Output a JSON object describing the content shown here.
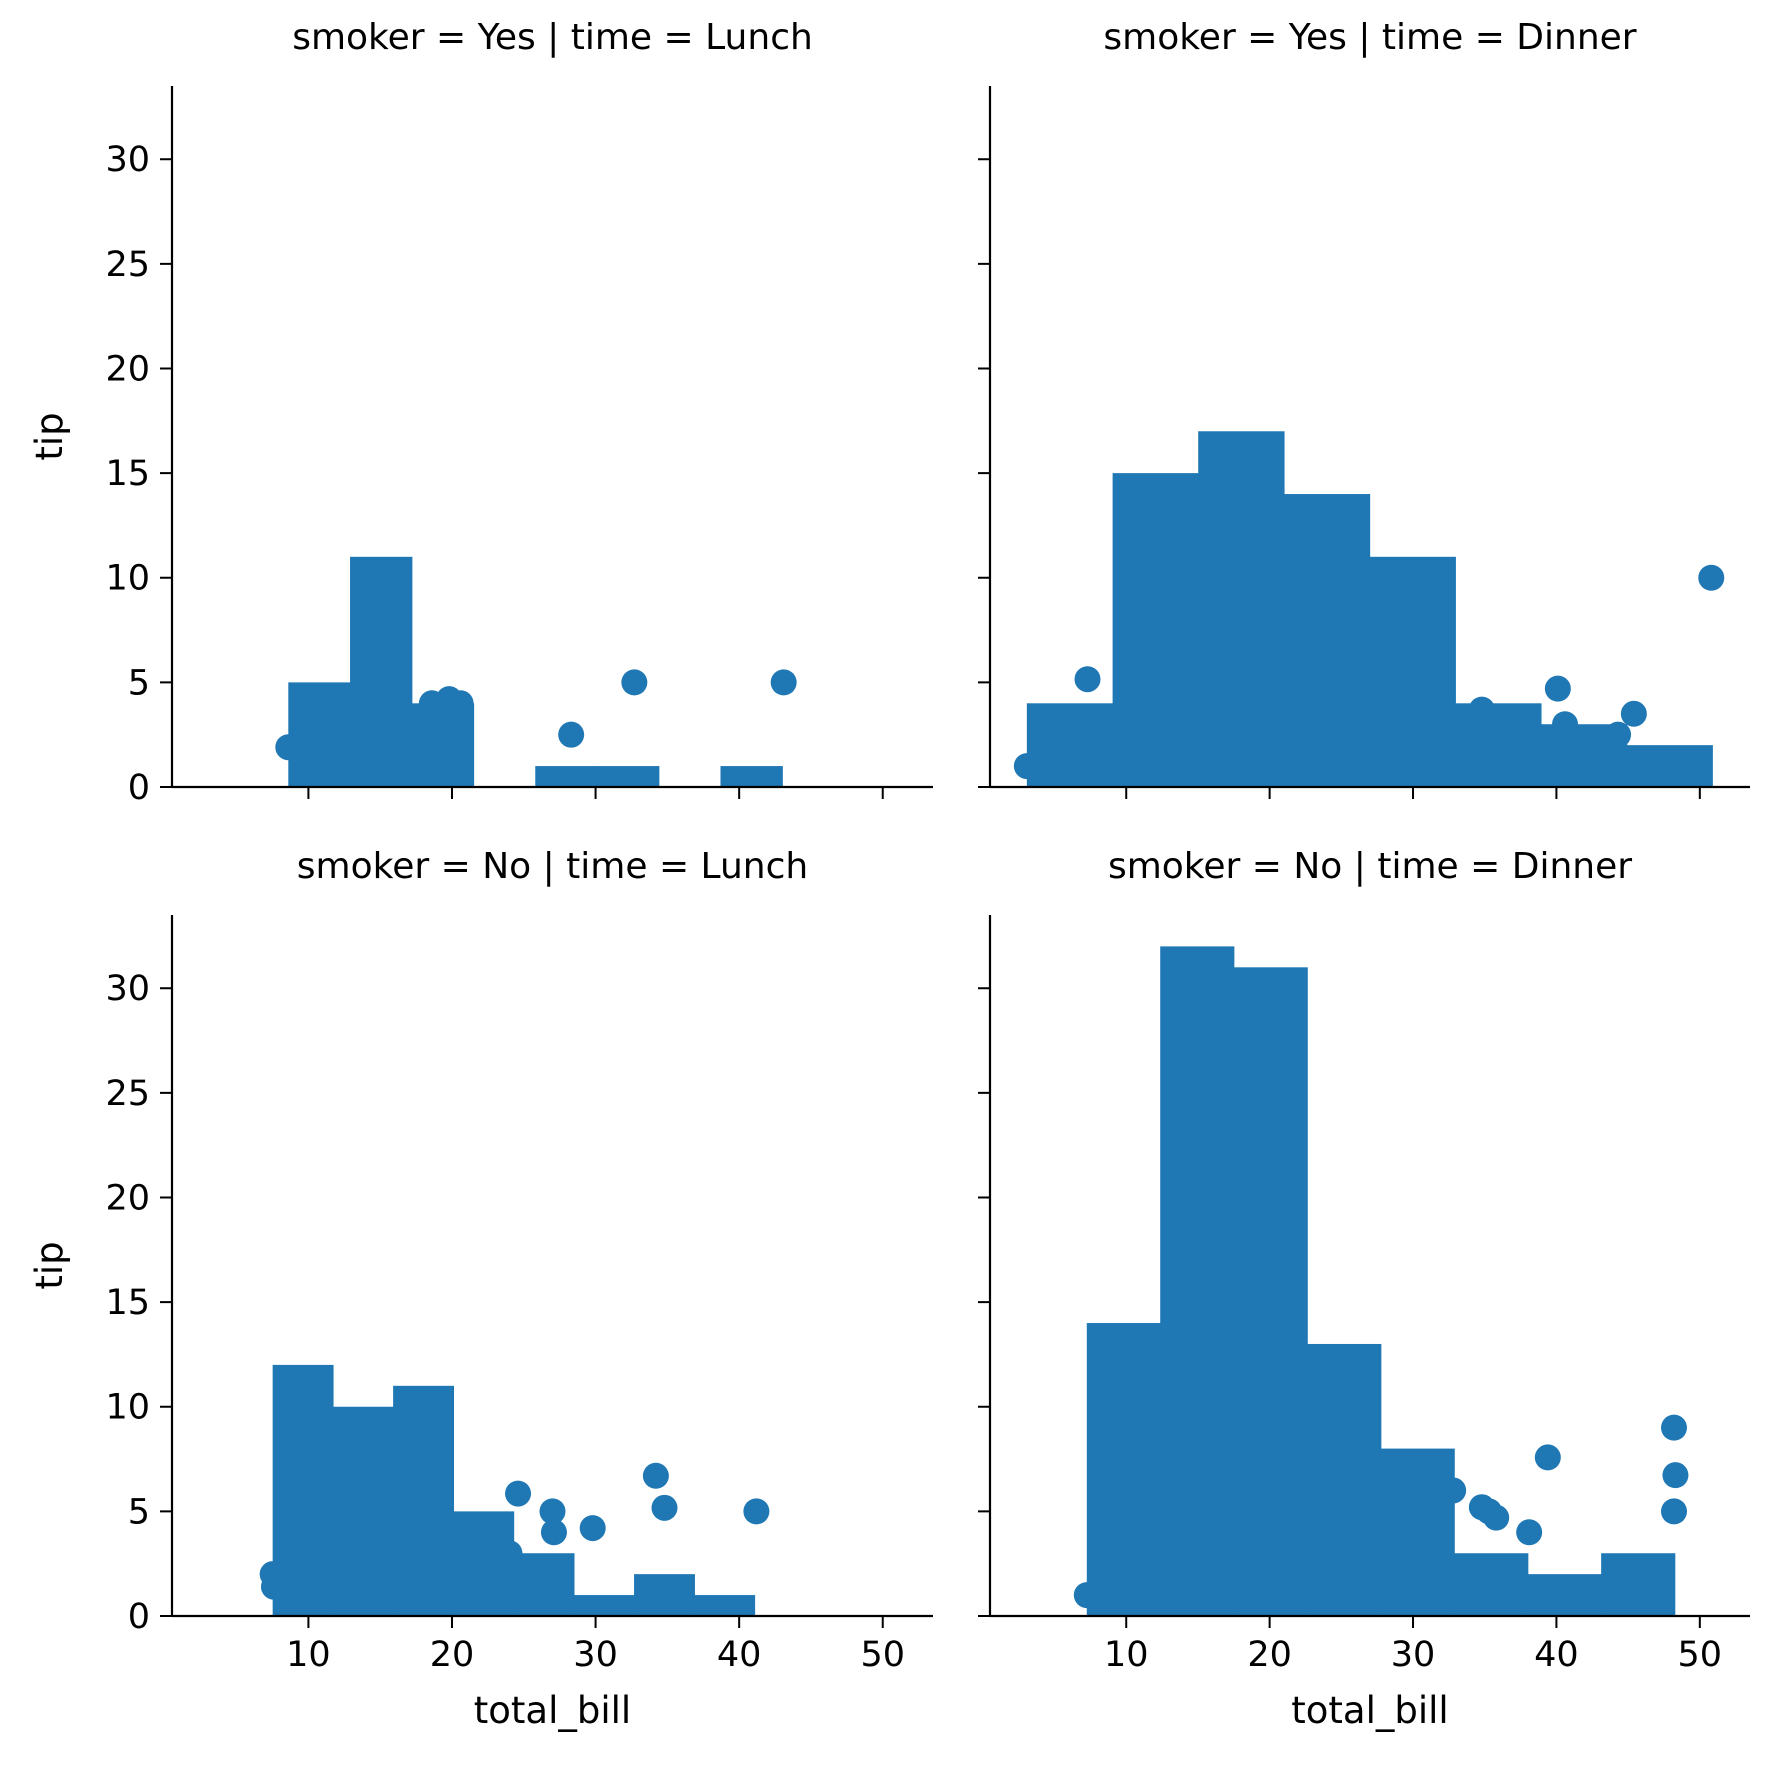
{
  "figure": {
    "x_label": "total_bill",
    "y_label": "tip",
    "mark_color": "#1f77b4",
    "x_range": [
      0.5,
      53.5
    ],
    "y_range": [
      0,
      33.5
    ],
    "x_ticks": [
      10,
      20,
      30,
      40,
      50
    ],
    "y_ticks": [
      0,
      5,
      10,
      15,
      20,
      25,
      30
    ],
    "grid": false,
    "legend": "none"
  },
  "chart_data": [
    {
      "type": "bar+scatter",
      "facet_title": "smoker = Yes | time = Lunch",
      "row": 0,
      "col": 0,
      "histogram": {
        "bin_edges": [
          8.6,
          12.9,
          17.2,
          21.5,
          25.8,
          30.1,
          34.4,
          38.7,
          43.0
        ],
        "counts": [
          5,
          11,
          4,
          0,
          1,
          1,
          0,
          1
        ]
      },
      "scatter": {
        "x": [
          8.6,
          10.1,
          11.5,
          12.9,
          14.2,
          15.5,
          16.6,
          17.5,
          18.6,
          19.8,
          20.6,
          28.3,
          32.7,
          43.1
        ],
        "y": [
          1.9,
          1.5,
          2.0,
          2.5,
          3.0,
          3.0,
          3.5,
          3.0,
          4.0,
          4.2,
          4.0,
          2.5,
          5.0,
          5.0
        ]
      }
    },
    {
      "type": "bar+scatter",
      "facet_title": "smoker = Yes | time = Dinner",
      "row": 0,
      "col": 1,
      "histogram": {
        "bin_edges": [
          3.07,
          9.05,
          15.02,
          21.0,
          26.97,
          32.95,
          38.92,
          44.9,
          50.87
        ],
        "counts": [
          4,
          15,
          17,
          14,
          11,
          4,
          3,
          2
        ]
      },
      "scatter": {
        "x": [
          3.07,
          7.3,
          10.0,
          34.8,
          37.9,
          40.1,
          40.6,
          44.3,
          45.4,
          50.8
        ],
        "y": [
          1.0,
          5.15,
          4.0,
          3.7,
          3.0,
          4.7,
          3.0,
          2.5,
          3.5,
          10.0
        ]
      }
    },
    {
      "type": "bar+scatter",
      "facet_title": "smoker = No | time = Lunch",
      "row": 1,
      "col": 0,
      "histogram": {
        "bin_edges": [
          7.51,
          11.71,
          15.9,
          20.1,
          24.29,
          28.49,
          32.68,
          36.88,
          41.07
        ],
        "counts": [
          12,
          10,
          11,
          5,
          3,
          1,
          2,
          1
        ]
      },
      "scatter": {
        "x": [
          7.51,
          7.6,
          24.0,
          24.6,
          27.0,
          27.1,
          29.8,
          34.2,
          34.8,
          41.2
        ],
        "y": [
          2.0,
          1.4,
          3.0,
          5.85,
          5.0,
          4.0,
          4.2,
          6.7,
          5.17,
          5.0
        ]
      }
    },
    {
      "type": "bar+scatter",
      "facet_title": "smoker = No | time = Dinner",
      "row": 1,
      "col": 1,
      "histogram": {
        "bin_edges": [
          7.25,
          12.37,
          17.5,
          22.62,
          27.75,
          32.87,
          38.0,
          43.12,
          48.25
        ],
        "counts": [
          14,
          32,
          31,
          13,
          8,
          3,
          2,
          3
        ]
      },
      "scatter": {
        "x": [
          7.25,
          32.8,
          34.8,
          35.3,
          35.8,
          38.1,
          39.4,
          48.2,
          48.3,
          48.2
        ],
        "y": [
          1.0,
          6.0,
          5.2,
          5.0,
          4.7,
          4.0,
          7.58,
          9.0,
          6.73,
          5.0
        ]
      }
    }
  ]
}
